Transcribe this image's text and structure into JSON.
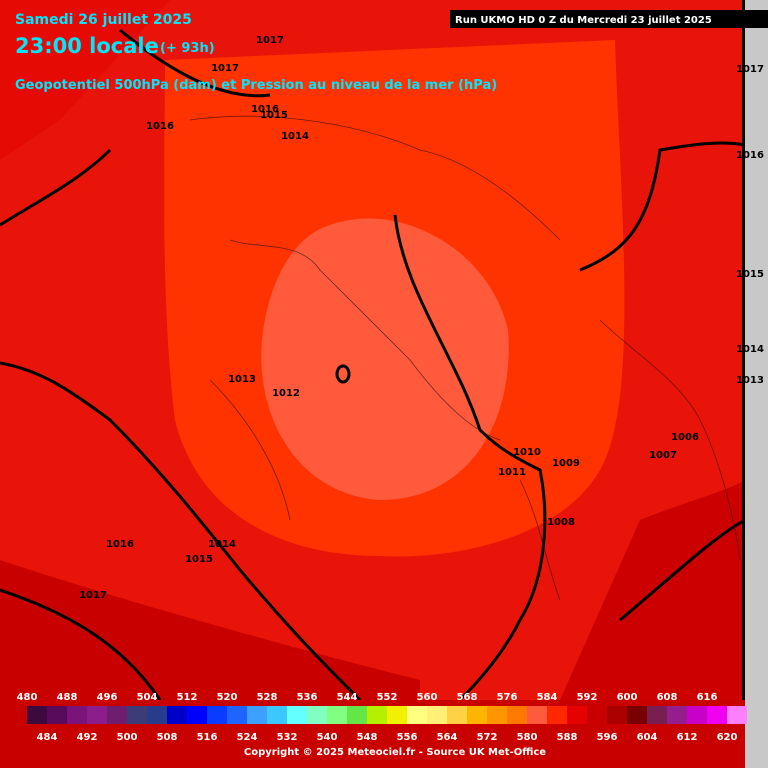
{
  "header": {
    "date": "Samedi 26 juillet 2025",
    "time": "23:00 locale",
    "lead": "(+ 93h)",
    "run": "Run UKMO HD 0 Z du Mercredi 23 juillet 2025",
    "subtitle": "Geopotentiel 500hPa (dam) et Pression au niveau de la mer (hPa)"
  },
  "isobar_labels": [
    1017,
    1017,
    1016,
    1015,
    1014,
    1016,
    1017,
    1016,
    1015,
    1014,
    1013,
    1013,
    1012,
    1010,
    1009,
    1011,
    1007,
    1006,
    1008,
    1016,
    1014,
    1015,
    1017
  ],
  "legend": {
    "levels": [
      480,
      484,
      488,
      492,
      496,
      500,
      504,
      508,
      512,
      516,
      520,
      524,
      528,
      532,
      536,
      540,
      544,
      548,
      552,
      556,
      560,
      564,
      568,
      572,
      576,
      580,
      584,
      588,
      592,
      596,
      600,
      604,
      608,
      612,
      616,
      620
    ],
    "colors": [
      "#3c0a3c",
      "#5a0a5a",
      "#7a147a",
      "#8c1e8c",
      "#6e1e6e",
      "#3c3c78",
      "#283c8c",
      "#0000c8",
      "#0000ff",
      "#0a3cff",
      "#1e64ff",
      "#3ca0ff",
      "#3cc8ff",
      "#64ffff",
      "#80ffc0",
      "#80ff80",
      "#64e646",
      "#b4f000",
      "#f0f000",
      "#ffff80",
      "#fff078",
      "#ffd246",
      "#ffb400",
      "#ff9600",
      "#ff7800",
      "#ff5a3c",
      "#ff2800",
      "#e60000",
      "#c80000",
      "#aa0000",
      "#780000",
      "#781e50",
      "#961e8c",
      "#c800c8",
      "#f000f0",
      "#ff80ff"
    ]
  },
  "footer": {
    "copyright": "Copyright © 2025 Meteociel.fr - Source UK Met-Office"
  }
}
